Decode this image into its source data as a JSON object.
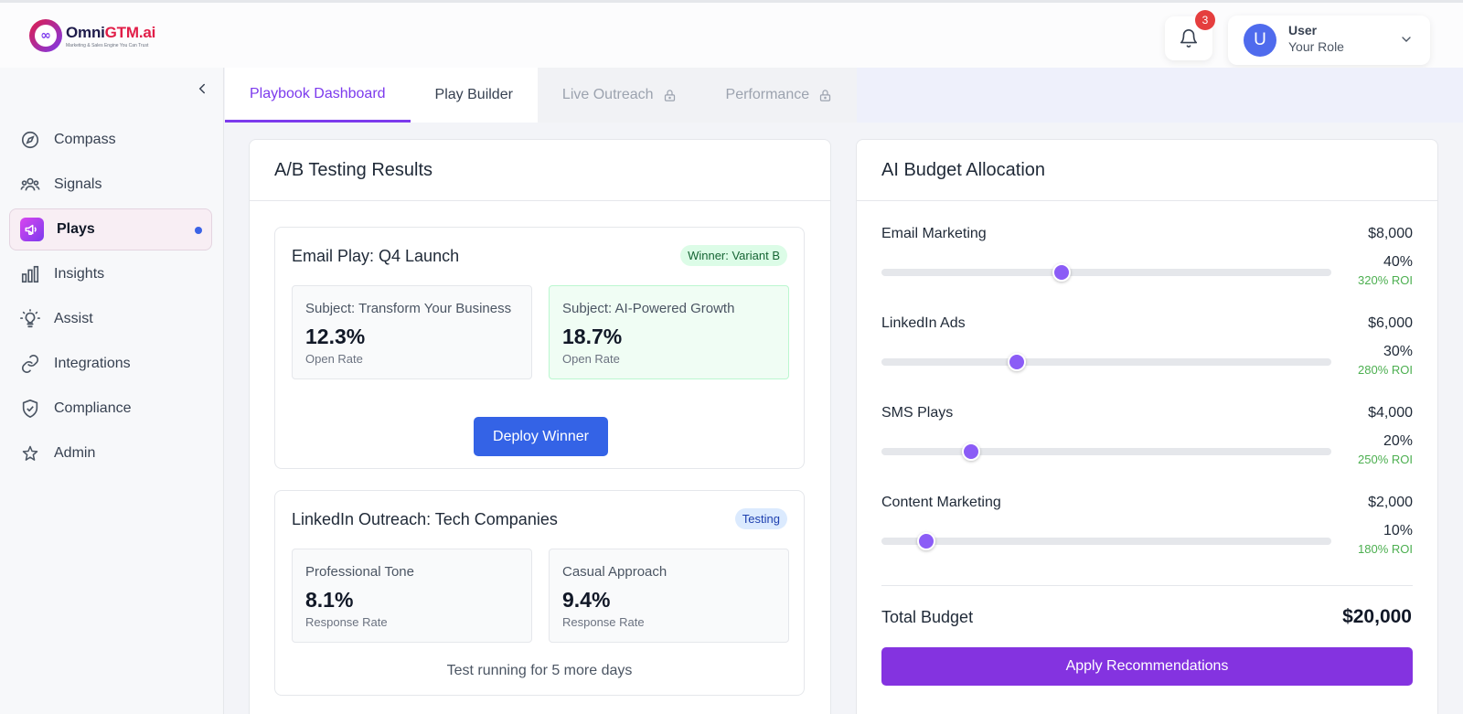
{
  "header": {
    "logo_name_a": "Omni",
    "logo_name_b": "GTM.ai",
    "logo_tagline": "Marketing & Sales Engine You Can Trust",
    "notifications_count": "3",
    "user_initial": "U",
    "user_name": "User",
    "user_role": "Your Role"
  },
  "sidebar": {
    "items": [
      {
        "label": "Compass",
        "icon": "compass-icon"
      },
      {
        "label": "Signals",
        "icon": "users-icon"
      },
      {
        "label": "Plays",
        "icon": "megaphone-icon",
        "active": true
      },
      {
        "label": "Insights",
        "icon": "bar-chart-icon"
      },
      {
        "label": "Assist",
        "icon": "lightbulb-icon"
      },
      {
        "label": "Integrations",
        "icon": "link-icon"
      },
      {
        "label": "Compliance",
        "icon": "shield-check-icon"
      },
      {
        "label": "Admin",
        "icon": "star-icon"
      }
    ]
  },
  "tabs": [
    {
      "label": "Playbook Dashboard",
      "active": true
    },
    {
      "label": "Play Builder"
    },
    {
      "label": "Live Outreach",
      "locked": true
    },
    {
      "label": "Performance",
      "locked": true
    }
  ],
  "ab_testing": {
    "title": "A/B Testing Results",
    "tests": [
      {
        "title": "Email Play: Q4 Launch",
        "status": "Winner: Variant B",
        "variant_a": {
          "subject": "Subject: Transform Your Business",
          "value": "12.3%",
          "metric": "Open Rate"
        },
        "variant_b": {
          "subject": "Subject: AI-Powered Growth",
          "value": "18.7%",
          "metric": "Open Rate"
        },
        "action": "Deploy Winner"
      },
      {
        "title": "LinkedIn Outreach: Tech Companies",
        "status": "Testing",
        "variant_a": {
          "subject": "Professional Tone",
          "value": "8.1%",
          "metric": "Response Rate"
        },
        "variant_b": {
          "subject": "Casual Approach",
          "value": "9.4%",
          "metric": "Response Rate"
        },
        "note": "Test running for 5 more days"
      }
    ]
  },
  "budget": {
    "title": "AI Budget Allocation",
    "channels": [
      {
        "name": "Email Marketing",
        "amount": "$8,000",
        "percent": "40%",
        "roi": "320% ROI",
        "slider_fraction": 0.4
      },
      {
        "name": "LinkedIn Ads",
        "amount": "$6,000",
        "percent": "30%",
        "roi": "280% ROI",
        "slider_fraction": 0.3
      },
      {
        "name": "SMS Plays",
        "amount": "$4,000",
        "percent": "20%",
        "roi": "250% ROI",
        "slider_fraction": 0.2
      },
      {
        "name": "Content Marketing",
        "amount": "$2,000",
        "percent": "10%",
        "roi": "180% ROI",
        "slider_fraction": 0.1
      }
    ],
    "total_label": "Total Budget",
    "total_value": "$20,000",
    "action": "Apply Recommendations"
  },
  "colors": {
    "accent": "#7c3aed",
    "primary_button": "#3463e6",
    "apply_button": "#8433e0",
    "roi_green": "#4caf50",
    "badge_red": "#e53e3e"
  }
}
